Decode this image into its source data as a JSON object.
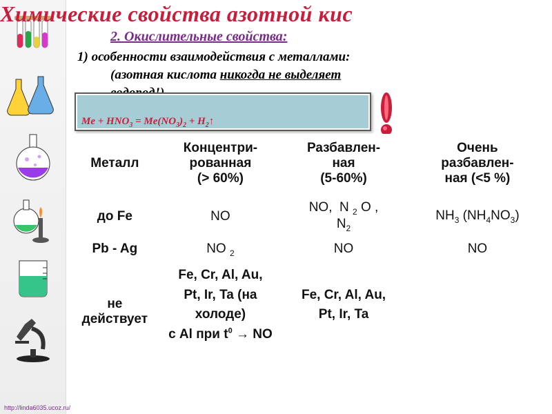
{
  "title_text": "Химические свойства азотной  кис",
  "title_color": "#c81e3c",
  "subtitle": "2. Окислительные свойства:",
  "line1": "1) особенности взаимодействия с металлами:",
  "line2_a": "(азотная кислота ",
  "line2_b": "никогда не выделяет",
  "line3": "водород!)",
  "eq_prefix": "Me + HNO",
  "eq_mid": " = Me(NO",
  "eq_tail": " + H",
  "table": {
    "headers": [
      "Металл",
      "Концентри-\nрованная\n(> 60%)",
      "Разбавлен-\nная\n(5-60%)",
      "Очень\nразбавлен-\nная (<5 %)"
    ],
    "r1c1": "до Fe",
    "r1c2": "NO",
    "r1c4_a": "NH",
    "r1c4_b": " (NH",
    "r1c4_c": "NO",
    "r1c4_d": ")",
    "r2c1": "Pb - Ag",
    "r2c2_a": "NO",
    "r2c3": "NO",
    "r2c4": "NO",
    "r3c1": "не\nдействует",
    "r3c2_a": "Fe, Cr, Al, Au,",
    "r3c2_b": "Pt, Ir, Ta (на",
    "r3c2_c": "холоде)",
    "r3c2_d_a": "с Al при  t",
    "r3c2_d_b": " → NO",
    "r3c3_a": "Fe, Cr, Al, Au,",
    "r3c3_b": "Pt, Ir, Ta"
  },
  "footer": "http://linda6035.ucoz.ru/",
  "colors": {
    "title": "#c81e3c",
    "subtitle": "#7a2a8a",
    "eqbox_bg": "#a6cdd6",
    "exclaim": "#c81e3c"
  }
}
